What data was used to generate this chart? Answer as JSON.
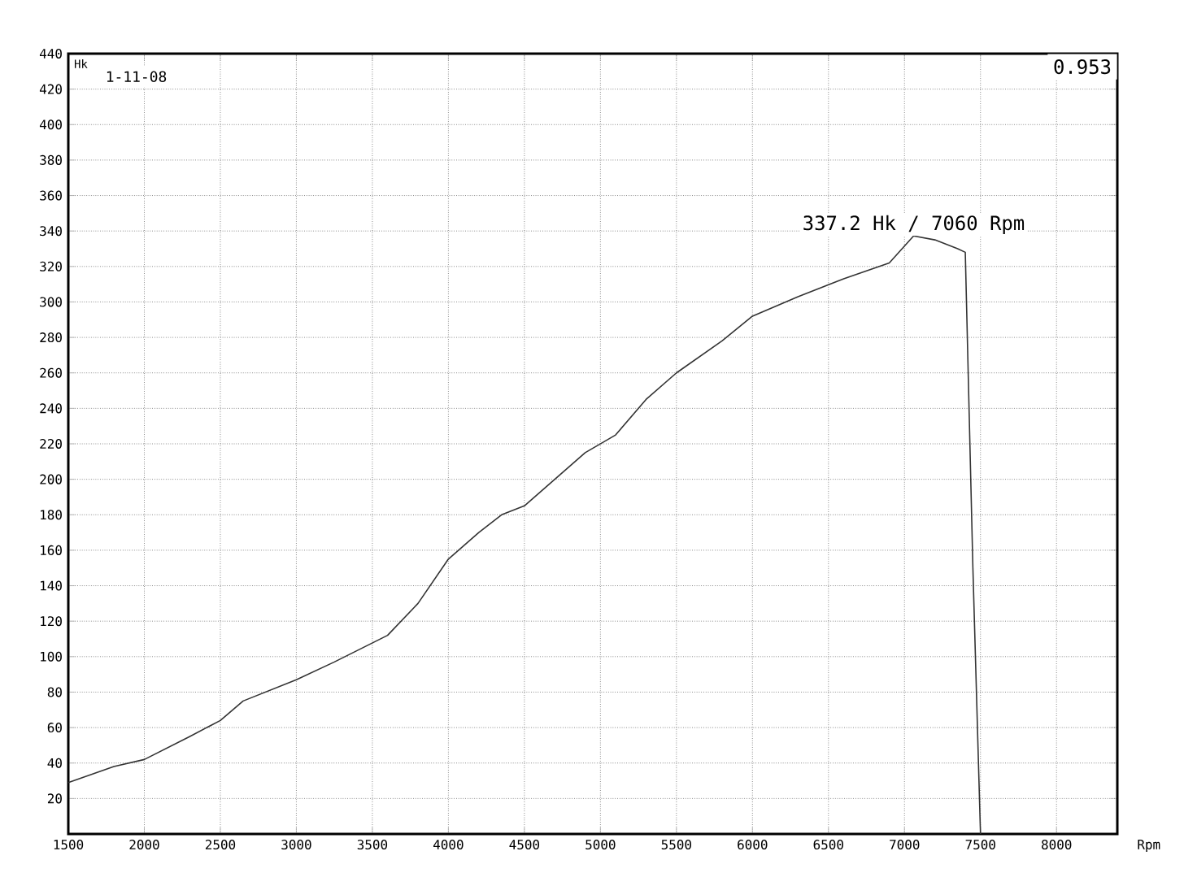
{
  "chart_data": {
    "type": "line",
    "xlabel": "Rpm",
    "ylabel": "Hk",
    "x": [
      1500,
      1800,
      2000,
      2300,
      2500,
      2650,
      3000,
      3250,
      3600,
      3800,
      4000,
      4200,
      4350,
      4500,
      4700,
      4900,
      5100,
      5300,
      5500,
      5800,
      6000,
      6300,
      6600,
      6900,
      7060,
      7200,
      7350,
      7400,
      7450,
      7500
    ],
    "series": [
      {
        "color": "#333333",
        "values": [
          29,
          38,
          42,
          55,
          64,
          75,
          87,
          97,
          112,
          130,
          155,
          170,
          180,
          185,
          200,
          215,
          225,
          245,
          260,
          278,
          292,
          303,
          313,
          322,
          337.2,
          335,
          330,
          328,
          150,
          0
        ]
      }
    ],
    "xlim": [
      1500,
      8400
    ],
    "ylim": [
      0,
      440
    ],
    "xticks": [
      1500,
      2000,
      2500,
      3000,
      3500,
      4000,
      4500,
      5000,
      5500,
      6000,
      6500,
      7000,
      7500,
      8000
    ],
    "yticks": [
      20,
      40,
      60,
      80,
      100,
      120,
      140,
      160,
      180,
      200,
      220,
      240,
      260,
      280,
      300,
      320,
      340,
      360,
      380,
      400,
      420,
      440
    ],
    "grid": true,
    "marker": "none",
    "line_style": "solid",
    "annotations": [
      {
        "text": "337.2 Hk / 7060 Rpm",
        "x": 7060,
        "y": 337.2
      },
      "0.953",
      "1-11-08"
    ]
  }
}
